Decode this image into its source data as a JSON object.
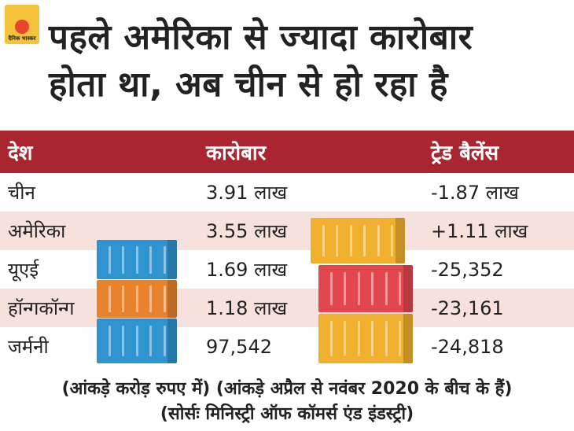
{
  "logo": {
    "text": "दैनिक भास्कर"
  },
  "title_line1": "पहले अमेरिका से ज्यादा कारोबार",
  "title_line2": "होता था, अब चीन से हो रहा है",
  "chart_data": {
    "type": "table",
    "columns": [
      "देश",
      "कारोबार",
      "ट्रेड बैलेंस"
    ],
    "rows": [
      [
        "चीन",
        "3.91 लाख",
        "-1.87 लाख"
      ],
      [
        "अमेरिका",
        "3.55 लाख",
        "+1.11 लाख"
      ],
      [
        "यूएई",
        "1.69 लाख",
        "-25,352"
      ],
      [
        "हॉन्गकॉन्ग",
        "1.18 लाख",
        "-23,161"
      ],
      [
        "जर्मनी",
        "97,542",
        "-24,818"
      ]
    ]
  },
  "notes": {
    "unit": "(आंकड़े करोड़ रुपए में)",
    "period": "(आंकड़े अप्रैल से नवंबर 2020 के बीच के हैं)",
    "source": "(सोर्सः मिनिस्ट्री ऑफ कॉमर्स एंड इंडस्ट्री)"
  },
  "colors": {
    "header": "#a92530",
    "row_alt": "#f6e1dc",
    "container_blue": "#2f93cf",
    "container_orange": "#e9822d",
    "container_yellow": "#f0b02e",
    "container_red": "#e2464f"
  }
}
